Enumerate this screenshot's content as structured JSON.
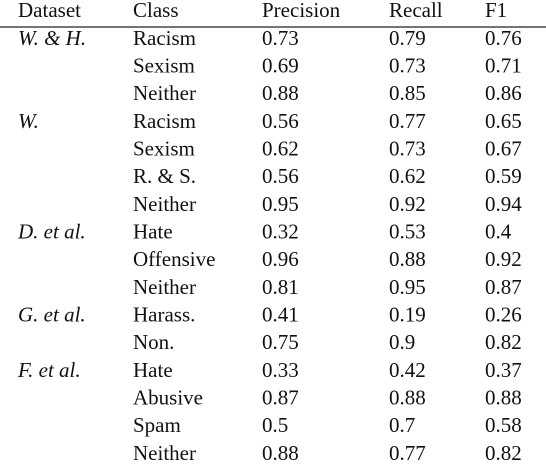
{
  "table": {
    "header": [
      "Dataset",
      "Class",
      "Precision",
      "Recall",
      "F1"
    ],
    "groups": [
      {
        "dataset": "W. & H.",
        "rows": [
          [
            "Racism",
            "0.73",
            "0.79",
            "0.76"
          ],
          [
            "Sexism",
            "0.69",
            "0.73",
            "0.71"
          ],
          [
            "Neither",
            "0.88",
            "0.85",
            "0.86"
          ]
        ]
      },
      {
        "dataset": "W.",
        "rows": [
          [
            "Racism",
            "0.56",
            "0.77",
            "0.65"
          ],
          [
            "Sexism",
            "0.62",
            "0.73",
            "0.67"
          ],
          [
            "R. & S.",
            "0.56",
            "0.62",
            "0.59"
          ],
          [
            "Neither",
            "0.95",
            "0.92",
            "0.94"
          ]
        ]
      },
      {
        "dataset": "D. et al.",
        "rows": [
          [
            "Hate",
            "0.32",
            "0.53",
            "0.4"
          ],
          [
            "Offensive",
            "0.96",
            "0.88",
            "0.92"
          ],
          [
            "Neither",
            "0.81",
            "0.95",
            "0.87"
          ]
        ]
      },
      {
        "dataset": "G. et al.",
        "rows": [
          [
            "Harass.",
            "0.41",
            "0.19",
            "0.26"
          ],
          [
            "Non.",
            "0.75",
            "0.9",
            "0.82"
          ]
        ]
      },
      {
        "dataset": "F. et al.",
        "rows": [
          [
            "Hate",
            "0.33",
            "0.42",
            "0.37"
          ],
          [
            "Abusive",
            "0.87",
            "0.88",
            "0.88"
          ],
          [
            "Spam",
            "0.5",
            "0.7",
            "0.58"
          ],
          [
            "Neither",
            "0.88",
            "0.77",
            "0.82"
          ]
        ]
      }
    ]
  }
}
